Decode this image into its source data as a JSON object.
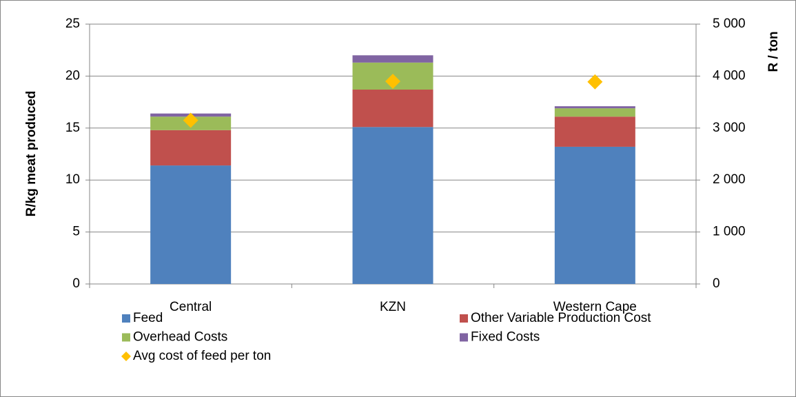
{
  "chart_data": {
    "type": "bar",
    "stacked": true,
    "y_label": "R/kg meat produced",
    "y2_label": "R / ton",
    "categories": [
      "Central",
      "KZN",
      "Western Cape"
    ],
    "series": [
      {
        "name": "Feed",
        "color": "#4f81bd",
        "values": [
          11.4,
          15.1,
          13.2
        ]
      },
      {
        "name": "Other Variable Production Cost",
        "color": "#c0504d",
        "values": [
          3.4,
          3.6,
          2.9
        ]
      },
      {
        "name": "Overhead Costs",
        "color": "#9bbb59",
        "values": [
          1.3,
          2.6,
          0.8
        ]
      },
      {
        "name": "Fixed Costs",
        "color": "#8064a2",
        "values": [
          0.3,
          0.7,
          0.2
        ]
      },
      {
        "name": "Avg cost of feed per ton",
        "color": "#ffc000",
        "type": "scatter",
        "axis": "y2",
        "values": [
          3150,
          3900,
          3890
        ]
      }
    ],
    "ylim": [
      0,
      25
    ],
    "yticks": [
      0,
      5,
      10,
      15,
      20,
      25
    ],
    "y2lim": [
      0,
      5000
    ],
    "y2ticks": [
      0,
      {
        "value": 1000,
        "label": "1 000"
      },
      {
        "value": 2000,
        "label": "2 000"
      },
      {
        "value": 3000,
        "label": "3 000"
      },
      {
        "value": 4000,
        "label": "4 000"
      },
      {
        "value": 5000,
        "label": "5 000"
      }
    ],
    "grid": true,
    "legend": "bottom"
  }
}
